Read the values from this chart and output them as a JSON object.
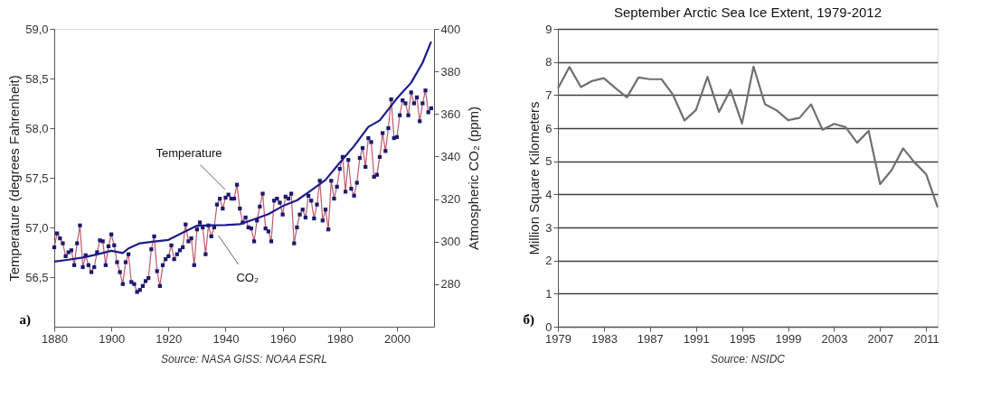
{
  "chart_data": [
    {
      "type": "line",
      "ylabel": "Temperature (degrees Fahrenheit)",
      "y2label": "Atmospheric CO₂ (ppm)",
      "xlim": [
        1880,
        2013
      ],
      "xticks": [
        1880,
        1900,
        1920,
        1940,
        1960,
        1980,
        2000
      ],
      "ylim": [
        56.0,
        59.0
      ],
      "yticks": [
        {
          "value": 56.5,
          "label": "56,5"
        },
        {
          "value": 57.0,
          "label": "57,0"
        },
        {
          "value": 57.5,
          "label": "57,5"
        },
        {
          "value": 58.0,
          "label": "58,0"
        },
        {
          "value": 58.5,
          "label": "58,5"
        },
        {
          "value": 59.0,
          "label": "59,0"
        }
      ],
      "y2lim": [
        260,
        400
      ],
      "y2ticks": [
        280,
        300,
        320,
        340,
        360,
        380,
        400
      ],
      "grid": false,
      "legend": false,
      "annotations": [
        "a)",
        "Source: NASA GISS: NOAA ESRL"
      ],
      "series": [
        {
          "name": "Temperature",
          "color": "#b03048",
          "marker": "square",
          "x": [
            1880,
            1881,
            1882,
            1883,
            1884,
            1885,
            1886,
            1887,
            1888,
            1889,
            1890,
            1891,
            1892,
            1893,
            1894,
            1895,
            1896,
            1897,
            1898,
            1899,
            1900,
            1901,
            1902,
            1903,
            1904,
            1905,
            1906,
            1907,
            1908,
            1909,
            1910,
            1911,
            1912,
            1913,
            1914,
            1915,
            1916,
            1917,
            1918,
            1919,
            1920,
            1921,
            1922,
            1923,
            1924,
            1925,
            1926,
            1927,
            1928,
            1929,
            1930,
            1931,
            1932,
            1933,
            1934,
            1935,
            1936,
            1937,
            1938,
            1939,
            1940,
            1941,
            1942,
            1943,
            1944,
            1945,
            1946,
            1947,
            1948,
            1949,
            1950,
            1951,
            1952,
            1953,
            1954,
            1955,
            1956,
            1957,
            1958,
            1959,
            1960,
            1961,
            1962,
            1963,
            1964,
            1965,
            1966,
            1967,
            1968,
            1969,
            1970,
            1971,
            1972,
            1973,
            1974,
            1975,
            1976,
            1977,
            1978,
            1979,
            1980,
            1981,
            1982,
            1983,
            1984,
            1985,
            1986,
            1987,
            1988,
            1989,
            1990,
            1991,
            1992,
            1993,
            1994,
            1995,
            1996,
            1997,
            1998,
            1999,
            2000,
            2001,
            2002,
            2003,
            2004,
            2005,
            2006,
            2007,
            2008,
            2009,
            2010,
            2011,
            2012
          ],
          "values": [
            56.8,
            56.94,
            56.89,
            56.84,
            56.71,
            56.75,
            56.77,
            56.62,
            56.84,
            57.02,
            56.6,
            56.72,
            56.62,
            56.55,
            56.6,
            56.75,
            56.87,
            56.86,
            56.62,
            56.81,
            56.93,
            56.82,
            56.65,
            56.55,
            56.43,
            56.65,
            56.73,
            56.45,
            56.43,
            56.35,
            56.37,
            56.41,
            56.46,
            56.49,
            56.78,
            56.91,
            56.56,
            56.41,
            56.62,
            56.68,
            56.71,
            56.82,
            56.68,
            56.73,
            56.77,
            56.8,
            57.03,
            56.86,
            56.89,
            56.62,
            56.98,
            57.05,
            57.0,
            56.73,
            57.02,
            56.91,
            57.0,
            57.23,
            57.29,
            57.19,
            57.3,
            57.33,
            57.29,
            57.29,
            57.43,
            57.19,
            57.05,
            57.1,
            57.0,
            56.99,
            56.86,
            57.07,
            57.21,
            57.34,
            56.99,
            56.96,
            56.86,
            57.27,
            57.29,
            57.25,
            57.13,
            57.31,
            57.29,
            57.34,
            56.84,
            57.0,
            57.13,
            57.18,
            57.1,
            57.32,
            57.27,
            57.09,
            57.23,
            57.47,
            57.07,
            57.18,
            56.98,
            57.47,
            57.29,
            57.41,
            57.59,
            57.71,
            57.36,
            57.68,
            57.39,
            57.32,
            57.45,
            57.7,
            57.8,
            57.61,
            57.9,
            57.86,
            57.51,
            57.53,
            57.71,
            57.95,
            57.77,
            58.0,
            58.29,
            57.9,
            57.91,
            58.13,
            58.28,
            58.25,
            58.13,
            58.36,
            58.25,
            58.31,
            58.07,
            58.25,
            58.38,
            58.16,
            58.2
          ]
        },
        {
          "name": "CO₂",
          "color": "#1c1c8c",
          "axis": "y2",
          "x": [
            1880,
            1885,
            1890,
            1895,
            1900,
            1904,
            1906,
            1910,
            1915,
            1920,
            1925,
            1930,
            1935,
            1940,
            1945,
            1950,
            1955,
            1960,
            1965,
            1970,
            1975,
            1980,
            1985,
            1990,
            1994,
            2000,
            2005,
            2009,
            2012
          ],
          "values": [
            290.6,
            291.5,
            292.5,
            294.0,
            295.7,
            294.6,
            296.8,
            299.2,
            300.0,
            300.8,
            304.2,
            307.5,
            307.7,
            307.8,
            308.2,
            310.5,
            312.9,
            316.7,
            319.4,
            324.1,
            329.0,
            337.1,
            344.9,
            353.9,
            357.0,
            367.3,
            374.7,
            384.1,
            394.0
          ]
        }
      ]
    },
    {
      "type": "line",
      "title": "September Arctic Sea Ice Extent, 1979-2012",
      "ylabel": "Million Square Kilometers",
      "xlim": [
        1979,
        2012
      ],
      "xticks": [
        1979,
        1983,
        1987,
        1991,
        1995,
        1999,
        2003,
        2007,
        2011
      ],
      "ylim": [
        0,
        9
      ],
      "yticks": [
        0,
        1,
        2,
        3,
        4,
        5,
        6,
        7,
        8,
        9
      ],
      "grid": "y",
      "legend": false,
      "annotations": [
        "б)",
        "Source: NSIDC"
      ],
      "x": [
        1979,
        1980,
        1981,
        1982,
        1983,
        1984,
        1985,
        1986,
        1987,
        1988,
        1989,
        1990,
        1991,
        1992,
        1993,
        1994,
        1995,
        1996,
        1997,
        1998,
        1999,
        2000,
        2001,
        2002,
        2003,
        2004,
        2005,
        2006,
        2007,
        2008,
        2009,
        2010,
        2011,
        2012
      ],
      "series": [
        {
          "color": "#707070",
          "values": [
            7.2,
            7.85,
            7.24,
            7.43,
            7.51,
            7.21,
            6.93,
            7.53,
            7.48,
            7.48,
            7.01,
            6.23,
            6.55,
            7.55,
            6.49,
            7.16,
            6.14,
            7.86,
            6.72,
            6.54,
            6.24,
            6.31,
            6.72,
            5.95,
            6.13,
            6.03,
            5.56,
            5.92,
            4.31,
            4.73,
            5.39,
            4.96,
            4.61,
            3.61
          ]
        }
      ]
    }
  ]
}
